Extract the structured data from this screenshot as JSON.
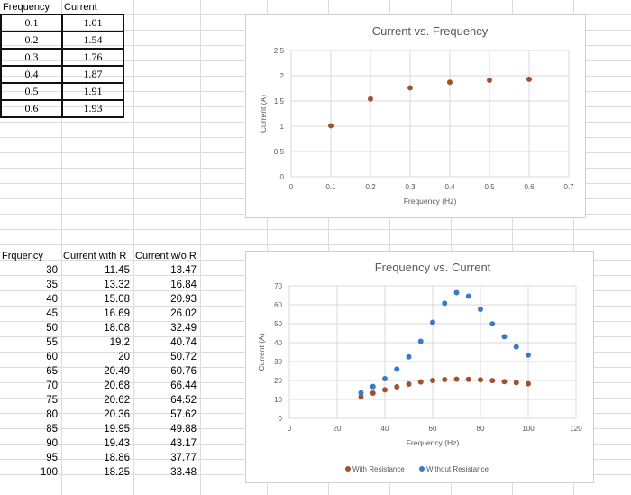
{
  "table1": {
    "headers": [
      "Frequency",
      "Current"
    ],
    "rows": [
      [
        "0.1",
        "1.01"
      ],
      [
        "0.2",
        "1.54"
      ],
      [
        "0.3",
        "1.76"
      ],
      [
        "0.4",
        "1.87"
      ],
      [
        "0.5",
        "1.91"
      ],
      [
        "0.6",
        "1.93"
      ]
    ]
  },
  "table2": {
    "headers": [
      "Frquency",
      "Current with R",
      "Current w/o R"
    ],
    "rows": [
      [
        "30",
        "11.45",
        "13.47"
      ],
      [
        "35",
        "13.32",
        "16.84"
      ],
      [
        "40",
        "15.08",
        "20.93"
      ],
      [
        "45",
        "16.69",
        "26.02"
      ],
      [
        "50",
        "18.08",
        "32.49"
      ],
      [
        "55",
        "19.2",
        "40.74"
      ],
      [
        "60",
        "20",
        "50.72"
      ],
      [
        "65",
        "20.49",
        "60.76"
      ],
      [
        "70",
        "20.68",
        "66.44"
      ],
      [
        "75",
        "20.62",
        "64.52"
      ],
      [
        "80",
        "20.36",
        "57.62"
      ],
      [
        "85",
        "19.95",
        "49.88"
      ],
      [
        "90",
        "19.43",
        "43.17"
      ],
      [
        "95",
        "18.86",
        "37.77"
      ],
      [
        "100",
        "18.25",
        "33.48"
      ]
    ]
  },
  "chart_data": [
    {
      "type": "scatter",
      "title": "Current vs. Frequency",
      "xlabel": "Frequency (Hz)",
      "ylabel": "Current (A)",
      "xlim": [
        0,
        0.7
      ],
      "ylim": [
        0,
        2.5
      ],
      "xticks": [
        "0",
        "0.1",
        "0.2",
        "0.3",
        "0.4",
        "0.5",
        "0.6",
        "0.7"
      ],
      "yticks": [
        "0",
        "0.5",
        "1",
        "1.5",
        "2",
        "2.5"
      ],
      "grid": true,
      "series": [
        {
          "color": "#a0522d",
          "x": [
            0.1,
            0.2,
            0.3,
            0.4,
            0.5,
            0.6
          ],
          "y": [
            1.01,
            1.54,
            1.76,
            1.87,
            1.91,
            1.93
          ]
        }
      ]
    },
    {
      "type": "scatter",
      "title": "Frequency vs. Current",
      "xlabel": "Frequency (Hz)",
      "ylabel": "Current (A)",
      "xlim": [
        0,
        120
      ],
      "ylim": [
        0,
        70
      ],
      "xticks": [
        "0",
        "20",
        "40",
        "60",
        "80",
        "100",
        "120"
      ],
      "yticks": [
        "0",
        "10",
        "20",
        "30",
        "40",
        "50",
        "60",
        "70"
      ],
      "grid": true,
      "legend": "bottom",
      "series": [
        {
          "name": "With Resistance",
          "color": "#a0522d",
          "x": [
            30,
            35,
            40,
            45,
            50,
            55,
            60,
            65,
            70,
            75,
            80,
            85,
            90,
            95,
            100
          ],
          "y": [
            11.45,
            13.32,
            15.08,
            16.69,
            18.08,
            19.2,
            20,
            20.49,
            20.68,
            20.62,
            20.36,
            19.95,
            19.43,
            18.86,
            18.25
          ]
        },
        {
          "name": "Without Resistance",
          "color": "#3a78c9",
          "x": [
            30,
            35,
            40,
            45,
            50,
            55,
            60,
            65,
            70,
            75,
            80,
            85,
            90,
            95,
            100
          ],
          "y": [
            13.47,
            16.84,
            20.93,
            26.02,
            32.49,
            40.74,
            50.72,
            60.76,
            66.44,
            64.52,
            57.62,
            49.88,
            43.17,
            37.77,
            33.48
          ]
        }
      ]
    }
  ]
}
